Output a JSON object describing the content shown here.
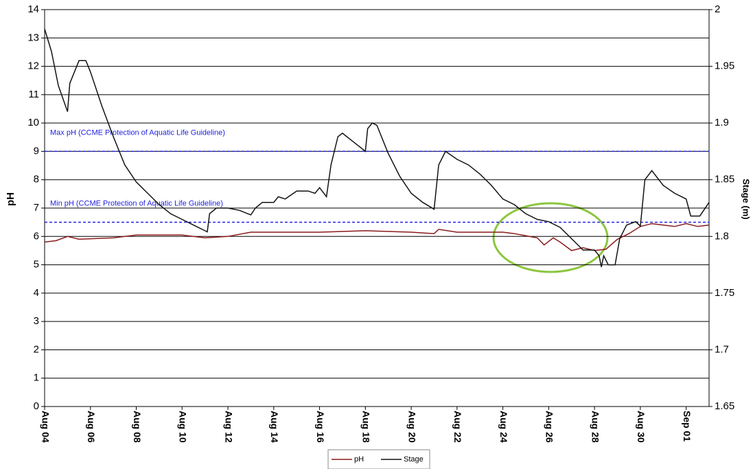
{
  "chart_data": {
    "type": "line",
    "y_label": "pH",
    "y2_label": "Stage (m)",
    "xlim": [
      0,
      29
    ],
    "xticks": [
      {
        "value": 0,
        "label": "Aug 04"
      },
      {
        "value": 2,
        "label": "Aug 06"
      },
      {
        "value": 4,
        "label": "Aug 08"
      },
      {
        "value": 6,
        "label": "Aug 10"
      },
      {
        "value": 8,
        "label": "Aug 12"
      },
      {
        "value": 10,
        "label": "Aug 14"
      },
      {
        "value": 12,
        "label": "Aug 16"
      },
      {
        "value": 14,
        "label": "Aug 18"
      },
      {
        "value": 16,
        "label": "Aug 20"
      },
      {
        "value": 18,
        "label": "Aug 22"
      },
      {
        "value": 20,
        "label": "Aug 24"
      },
      {
        "value": 22,
        "label": "Aug 26"
      },
      {
        "value": 24,
        "label": "Aug 28"
      },
      {
        "value": 26,
        "label": "Aug 30"
      },
      {
        "value": 28,
        "label": "Sep 01"
      }
    ],
    "ylim": [
      0,
      14
    ],
    "yticks": [
      0,
      1,
      2,
      3,
      4,
      5,
      6,
      7,
      8,
      9,
      10,
      11,
      12,
      13,
      14
    ],
    "y2lim": [
      1.65,
      2
    ],
    "y2ticks": [
      1.65,
      1.7,
      1.75,
      1.8,
      1.85,
      1.9,
      1.95,
      2
    ],
    "grid": true,
    "guidelines": [
      {
        "value": 9,
        "label": "Max pH (CCME Protection of Aquatic Life Guideline)"
      },
      {
        "value": 6.5,
        "label": "Min pH (CCME Protection of Aquatic Life Guideline)"
      }
    ],
    "guideline_color": "#2222dd",
    "series": [
      {
        "name": "pH",
        "color": "#8b1a1a",
        "x": [
          0,
          0.5,
          1,
          1.5,
          3,
          4,
          6,
          7,
          8,
          9,
          12,
          14,
          16,
          17,
          17.2,
          18,
          20,
          20.5,
          21.5,
          21.8,
          22.2,
          22.5,
          23,
          23.5,
          24,
          24.5,
          25,
          25.5,
          26,
          26.5,
          27,
          27.5,
          28,
          28.5,
          29
        ],
        "values": [
          5.8,
          5.85,
          6.0,
          5.9,
          5.95,
          6.05,
          6.05,
          5.95,
          6.0,
          6.15,
          6.15,
          6.2,
          6.15,
          6.1,
          6.25,
          6.15,
          6.15,
          6.1,
          5.95,
          5.7,
          5.95,
          5.8,
          5.5,
          5.6,
          5.5,
          5.55,
          5.9,
          6.1,
          6.35,
          6.45,
          6.4,
          6.35,
          6.45,
          6.35,
          6.4
        ]
      },
      {
        "name": "Stage",
        "color": "#111111",
        "axis": "y2",
        "x": [
          0,
          0.3,
          0.6,
          1.0,
          1.1,
          1.3,
          1.5,
          1.8,
          2.0,
          2.5,
          3.0,
          3.5,
          4.0,
          4.5,
          5.0,
          5.5,
          6.0,
          6.5,
          7.0,
          7.1,
          7.2,
          7.5,
          8.0,
          8.5,
          9.0,
          9.2,
          9.5,
          10.0,
          10.2,
          10.5,
          11.0,
          11.5,
          11.8,
          12.0,
          12.3,
          12.5,
          12.8,
          13.0,
          13.5,
          14.0,
          14.1,
          14.3,
          14.5,
          15.0,
          15.5,
          16.0,
          16.5,
          17.0,
          17.2,
          17.5,
          18.0,
          18.5,
          19.0,
          19.5,
          20.0,
          20.5,
          21.0,
          21.5,
          22.0,
          22.5,
          23.0,
          23.5,
          24.0,
          24.2,
          24.3,
          24.4,
          24.6,
          24.9,
          25.1,
          25.4,
          25.8,
          26.0,
          26.2,
          26.5,
          27.0,
          27.5,
          28.0,
          28.2,
          28.6,
          29.0
        ],
        "values": [
          1.983,
          1.963,
          1.933,
          1.91,
          1.935,
          1.945,
          1.955,
          1.955,
          1.945,
          1.915,
          1.888,
          1.863,
          1.848,
          1.838,
          1.828,
          1.82,
          1.815,
          1.81,
          1.805,
          1.804,
          1.82,
          1.825,
          1.825,
          1.823,
          1.819,
          1.825,
          1.83,
          1.83,
          1.835,
          1.833,
          1.84,
          1.84,
          1.838,
          1.843,
          1.835,
          1.863,
          1.888,
          1.891,
          1.883,
          1.875,
          1.895,
          1.9,
          1.898,
          1.873,
          1.853,
          1.838,
          1.83,
          1.824,
          1.863,
          1.875,
          1.868,
          1.863,
          1.855,
          1.845,
          1.833,
          1.828,
          1.82,
          1.815,
          1.813,
          1.808,
          1.798,
          1.788,
          1.788,
          1.783,
          1.773,
          1.783,
          1.775,
          1.775,
          1.798,
          1.81,
          1.813,
          1.809,
          1.85,
          1.858,
          1.845,
          1.838,
          1.833,
          1.818,
          1.818,
          1.83
        ]
      }
    ]
  }
}
